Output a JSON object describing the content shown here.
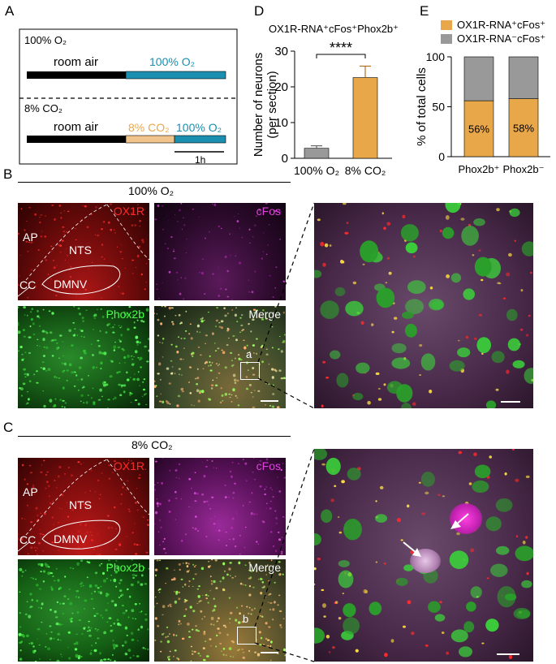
{
  "panel_a": {
    "letter": "A",
    "top_title": "100% O₂",
    "top_room": "room air",
    "top_o2": "100% O₂",
    "bottom_title": "8% CO₂",
    "bottom_room": "room air",
    "bottom_co2": "8% CO₂",
    "bottom_o2": "100% O₂",
    "scale_label": "1h"
  },
  "panel_d": {
    "letter": "D",
    "significance": "****",
    "title_text": "OX1R-RNA⁺cFos⁺Phox2b⁺"
  },
  "panel_e": {
    "letter": "E",
    "legend_1": "OX1R-RNA⁺cFos⁺",
    "legend_2": "OX1R-RNA⁻cFos⁺"
  },
  "panel_b": {
    "letter": "B",
    "header": "100% O₂",
    "ox1r": "OX1R",
    "cfos": "cFos",
    "phox2b": "Phox2b",
    "merge": "Merge",
    "ap": "AP",
    "nts": "NTS",
    "cc": "CC",
    "dmnv": "DMNV",
    "inset": "a"
  },
  "panel_c": {
    "letter": "C",
    "header": "8% CO₂",
    "ox1r": "OX1R",
    "cfos": "cFos",
    "phox2b": "Phox2b",
    "merge": "Merge",
    "ap": "AP",
    "nts": "NTS",
    "cc": "CC",
    "dmnv": "DMNV",
    "inset": "b"
  },
  "chart_data": [
    {
      "type": "bar",
      "panel": "D",
      "title": "OX1R-RNA⁺cFos⁺Phox2b⁺",
      "ylabel": "Number of neurons (per section)",
      "ylabel_lines": [
        "Number of neurons",
        "(per section)"
      ],
      "categories": [
        "100% O₂",
        "8% CO₂"
      ],
      "values": [
        2.8,
        22.6
      ],
      "errors": [
        0.7,
        3.2
      ],
      "colors": [
        "#999999",
        "#e8a84a"
      ],
      "ylim": [
        0,
        30
      ],
      "yticks": [
        "0",
        "10",
        "20",
        "30"
      ]
    },
    {
      "type": "bar",
      "panel": "E",
      "stacked": true,
      "ylabel": "% of total cells",
      "categories": [
        "Phox2b⁺",
        "Phox2b⁻"
      ],
      "series": [
        {
          "name": "OX1R-RNA⁺cFos⁺",
          "values": [
            56,
            58
          ],
          "color": "#e8a84a",
          "labels": [
            "56%",
            "58%"
          ]
        },
        {
          "name": "OX1R-RNA⁻cFos⁺",
          "values": [
            44,
            42
          ],
          "color": "#999999"
        }
      ],
      "ylim": [
        0,
        100
      ],
      "yticks": [
        "0",
        "50",
        "100"
      ]
    }
  ]
}
